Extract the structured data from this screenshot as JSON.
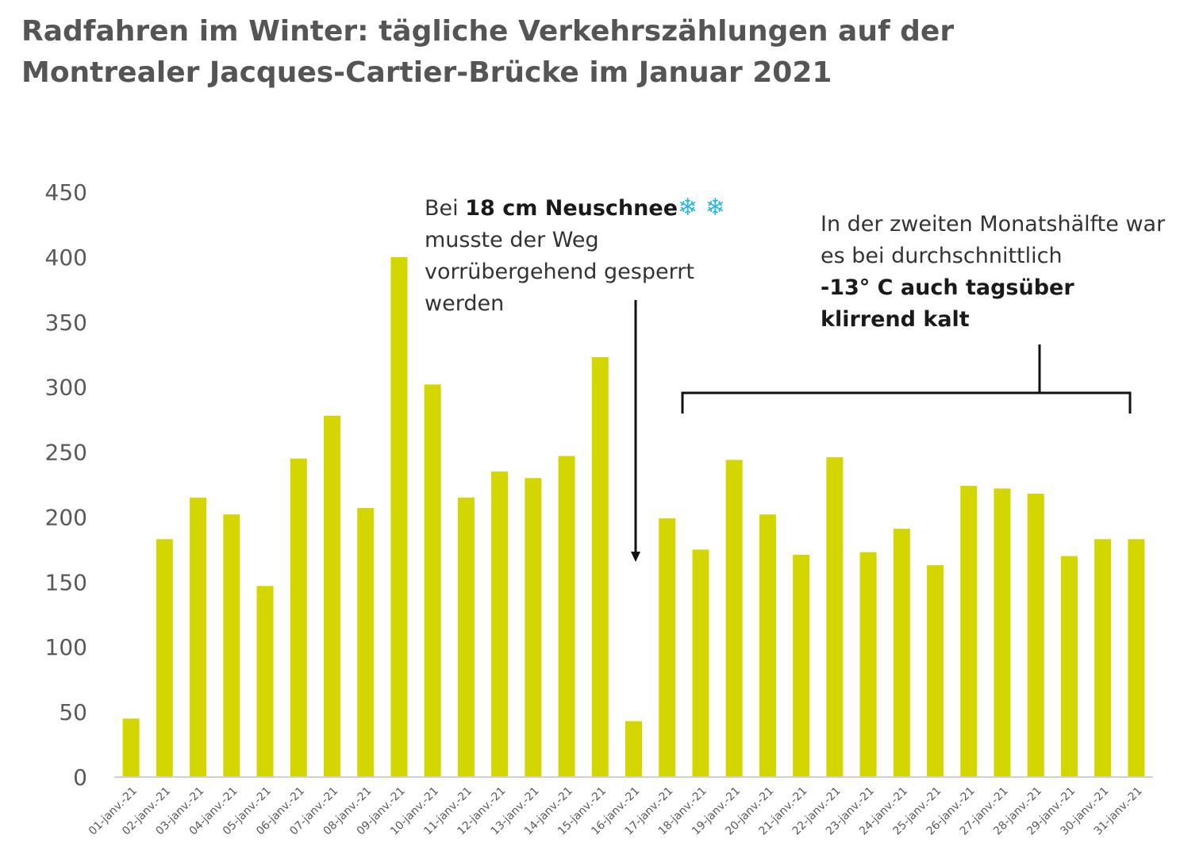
{
  "title_line1": "Radfahren im Winter: tägliche Verkehrszählungen auf der",
  "title_line2": "Montrealer Jacques-Cartier-Brücke im Januar 2021",
  "annotations": {
    "snow": {
      "pre": "Bei ",
      "bold": "18 cm Neuschnee",
      "icon": "❄ ❄",
      "icon_name": "snowflake-icon",
      "rest": "musste der Weg vorrübergehend gesperrt werden"
    },
    "cold": {
      "plain": "In der zweiten Monatshälfte war es bei durchschnittlich",
      "bold": "-13° C auch tagsüber klirrend kalt"
    }
  },
  "chart_data": {
    "type": "bar",
    "title": "Radfahren im Winter: tägliche Verkehrszählungen auf der Montrealer Jacques-Cartier-Brücke im Januar 2021",
    "categories": [
      "01-janv.-21",
      "02-janv.-21",
      "03-janv.-21",
      "04-janv.-21",
      "05-janv.-21",
      "06-janv.-21",
      "07-janv.-21",
      "08-janv.-21",
      "09-janv.-21",
      "10-janv.-21",
      "11-janv.-21",
      "12-janv.-21",
      "13-janv.-21",
      "14-janv.-21",
      "15-janv.-21",
      "16-janv.-21",
      "17-janv.-21",
      "18-janv.-21",
      "19-janv.-21",
      "20-janv.-21",
      "21-janv.-21",
      "22-janv.-21",
      "23-janv.-21",
      "24-janv.-21",
      "25-janv.-21",
      "26-janv.-21",
      "27-janv.-21",
      "28-janv.-21",
      "29-janv.-21",
      "30-janv.-21",
      "31-janv.-21"
    ],
    "values": [
      45,
      183,
      215,
      202,
      147,
      245,
      278,
      207,
      400,
      302,
      215,
      235,
      230,
      247,
      323,
      43,
      199,
      175,
      244,
      202,
      171,
      246,
      173,
      191,
      163,
      224,
      222,
      218,
      170,
      183,
      183
    ],
    "yticks": [
      0,
      50,
      100,
      150,
      200,
      250,
      300,
      350,
      400,
      450
    ],
    "ylim": [
      0,
      450
    ],
    "grid": false,
    "legend": "none",
    "bar_color": "#d4d600",
    "xlabel": "",
    "ylabel": ""
  }
}
